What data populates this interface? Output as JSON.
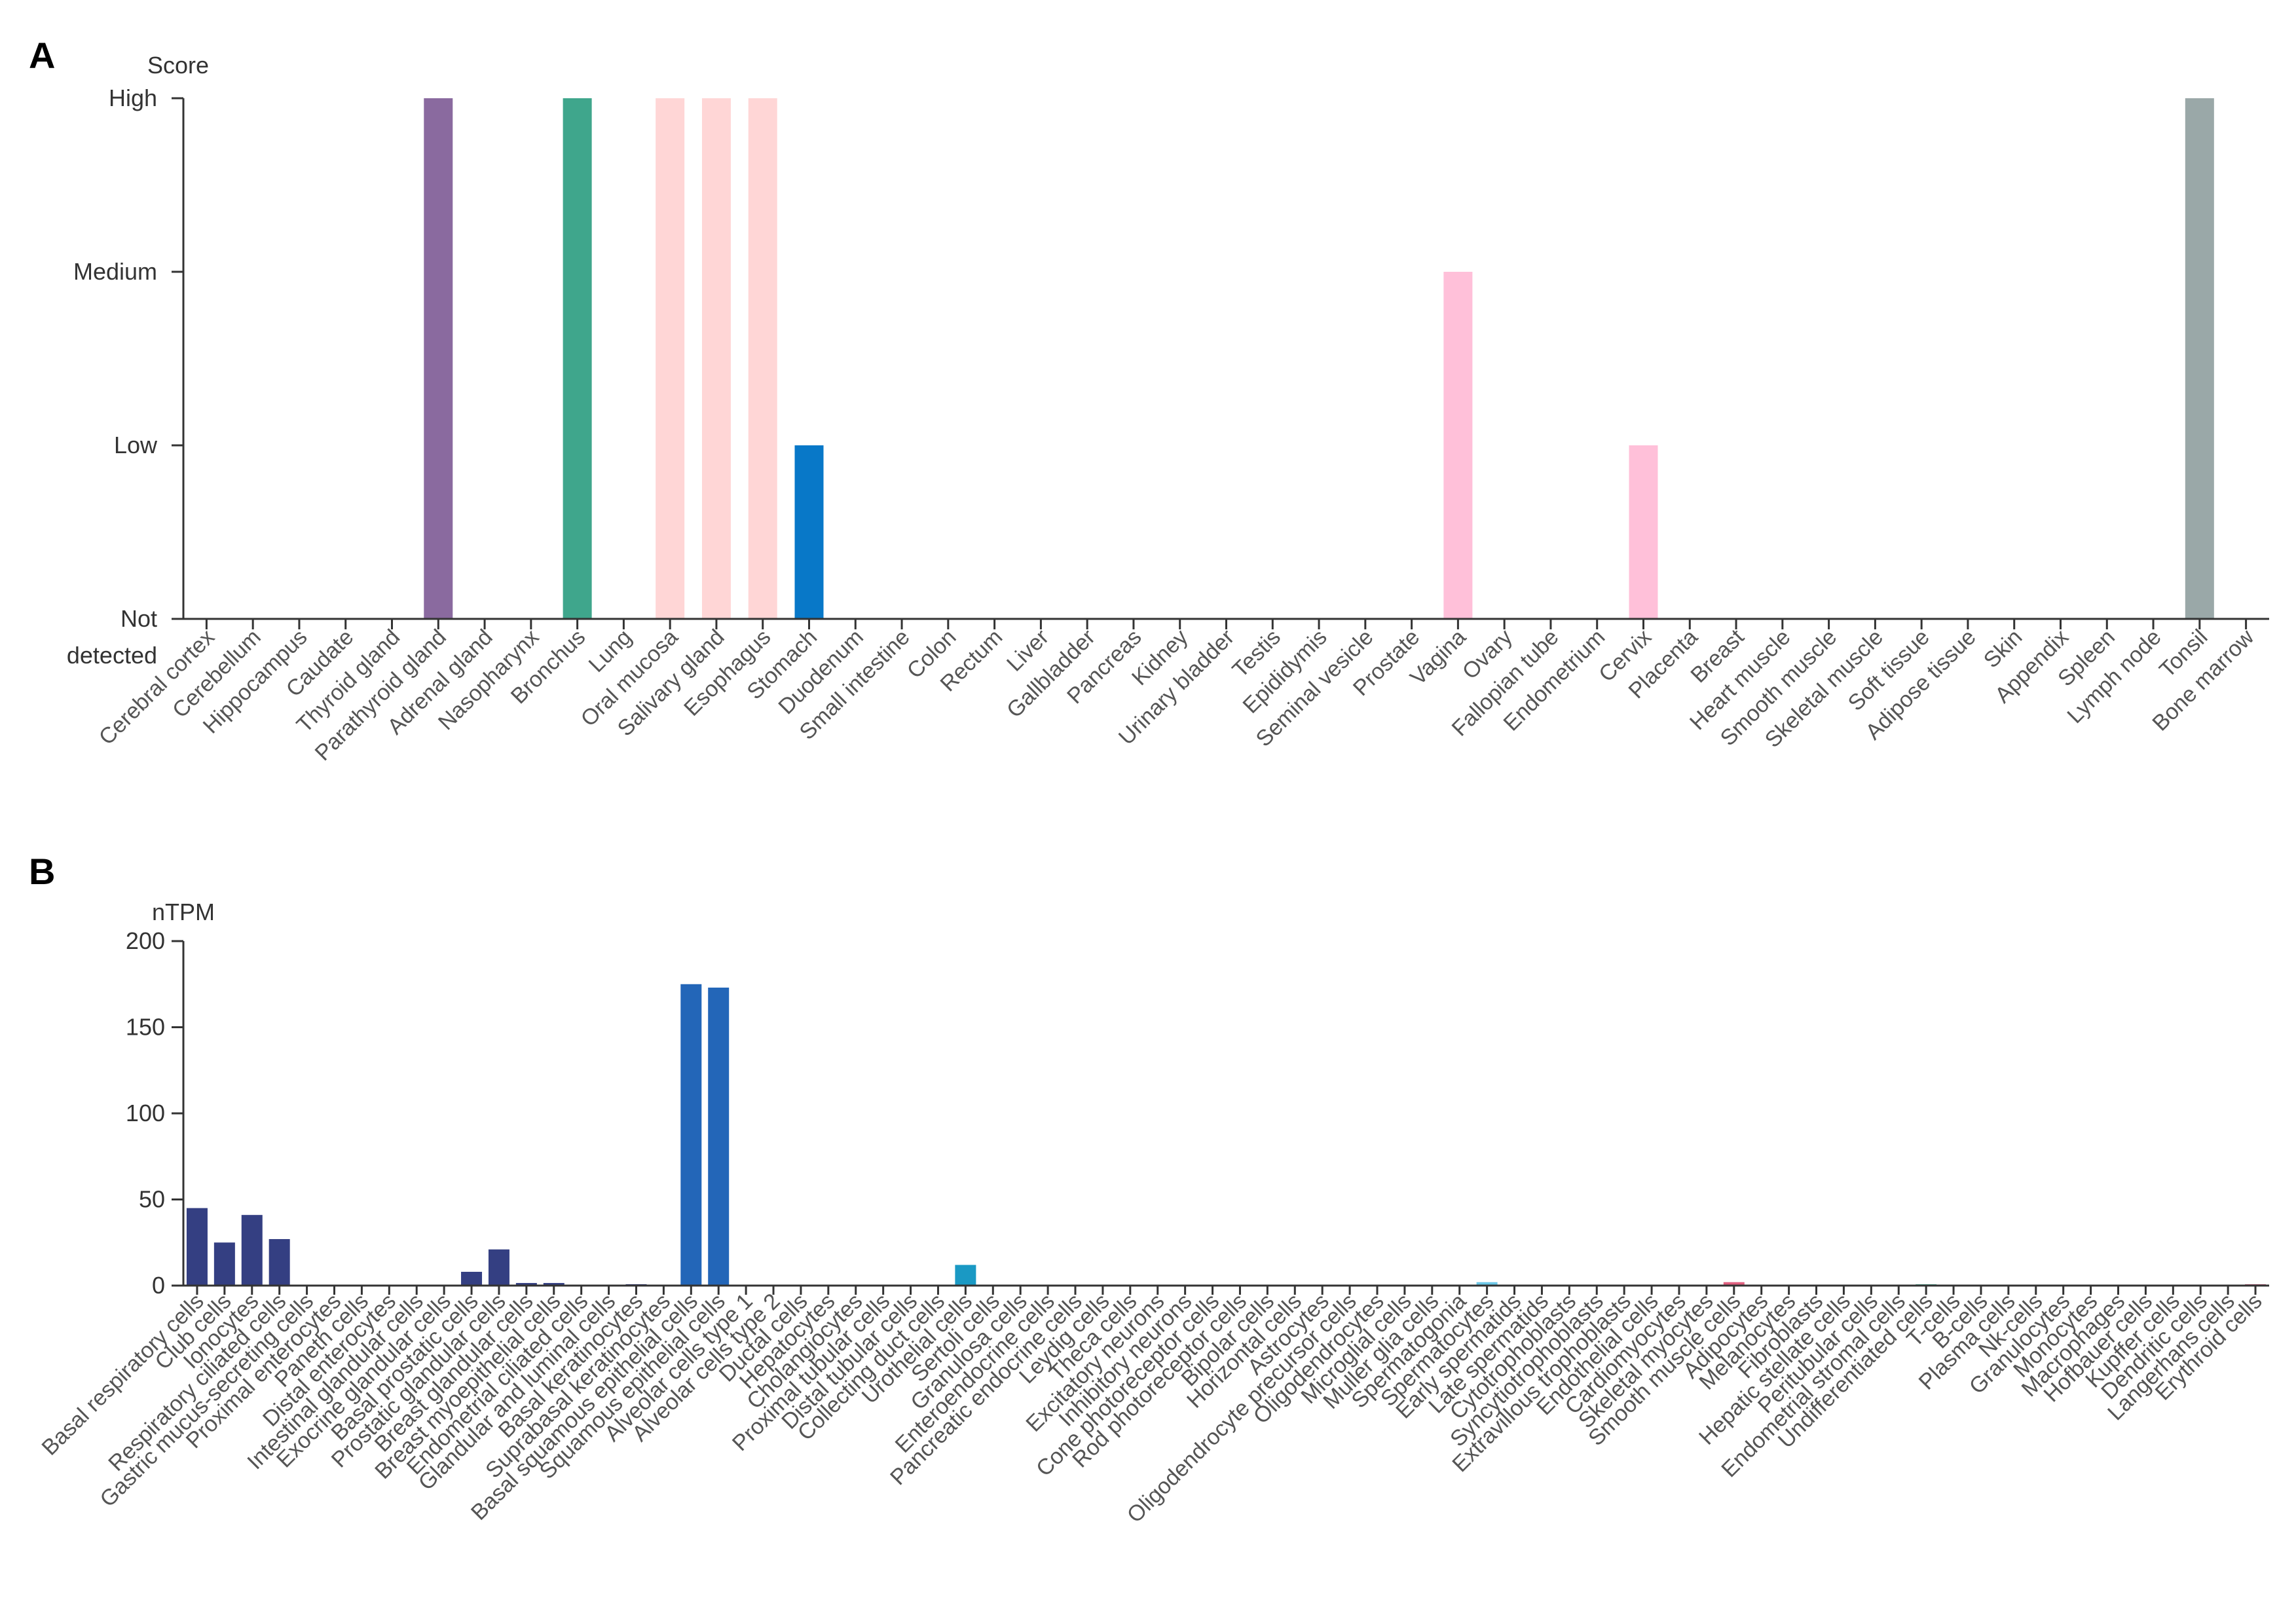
{
  "chart_data": [
    {
      "panel": "A",
      "type": "bar",
      "ylabel": "Score",
      "y_levels": [
        "Not detected",
        "Low",
        "Medium",
        "High"
      ],
      "y_level_labels": [
        "Not",
        "detected",
        "Low",
        "Medium",
        "High"
      ],
      "categories": [
        "Cerebral cortex",
        "Cerebellum",
        "Hippocampus",
        "Caudate",
        "Thyroid gland",
        "Parathyroid gland",
        "Adrenal gland",
        "Nasopharynx",
        "Bronchus",
        "Lung",
        "Oral mucosa",
        "Salivary gland",
        "Esophagus",
        "Stomach",
        "Duodenum",
        "Small intestine",
        "Colon",
        "Rectum",
        "Liver",
        "Gallbladder",
        "Pancreas",
        "Kidney",
        "Urinary bladder",
        "Testis",
        "Epididymis",
        "Seminal vesicle",
        "Prostate",
        "Vagina",
        "Ovary",
        "Fallopian tube",
        "Endometrium",
        "Cervix",
        "Placenta",
        "Breast",
        "Heart muscle",
        "Smooth muscle",
        "Skeletal muscle",
        "Soft tissue",
        "Adipose tissue",
        "Skin",
        "Appendix",
        "Spleen",
        "Lymph node",
        "Tonsil",
        "Bone marrow"
      ],
      "values": [
        0,
        0,
        0,
        0,
        0,
        3,
        0,
        0,
        3,
        0,
        3,
        3,
        3,
        1,
        0,
        0,
        0,
        0,
        0,
        0,
        0,
        0,
        0,
        0,
        0,
        0,
        0,
        2,
        0,
        0,
        0,
        1,
        0,
        0,
        0,
        0,
        0,
        0,
        0,
        0,
        0,
        0,
        0,
        3,
        0
      ],
      "colors": [
        "#888888",
        "#888888",
        "#888888",
        "#888888",
        "#888888",
        "#8a6a9f",
        "#888888",
        "#888888",
        "#3fa68c",
        "#888888",
        "#ffd6d6",
        "#ffd6d6",
        "#ffd6d6",
        "#0878c8",
        "#888888",
        "#888888",
        "#888888",
        "#888888",
        "#888888",
        "#888888",
        "#888888",
        "#888888",
        "#888888",
        "#888888",
        "#888888",
        "#888888",
        "#888888",
        "#ffc0d9",
        "#888888",
        "#888888",
        "#888888",
        "#ffc0d9",
        "#888888",
        "#888888",
        "#888888",
        "#888888",
        "#888888",
        "#888888",
        "#888888",
        "#888888",
        "#888888",
        "#888888",
        "#888888",
        "#9aa8a8",
        "#888888"
      ]
    },
    {
      "panel": "B",
      "type": "bar",
      "ylabel": "nTPM",
      "ylim": [
        0,
        200
      ],
      "yticks": [
        0,
        50,
        100,
        150,
        200
      ],
      "categories": [
        "Basal respiratory cells",
        "Club cells",
        "Ionocytes",
        "Respiratory ciliated cells",
        "Gastric mucus-secreting cells",
        "Proximal enterocytes",
        "Paneth cells",
        "Distal enterocytes",
        "Intestinal glandular cells",
        "Exocrine glandular cells",
        "Basal prostatic cells",
        "Prostatic glandular cells",
        "Breast glandular cells",
        "Breast myoepithelial cells",
        "Endometrial ciliated cells",
        "Glandular and luminal cells",
        "Basal keratinocytes",
        "Suprabasal keratinocytes",
        "Basal squamous epithelial cells",
        "Squamous epithelial cells",
        "Alveolar cells type 1",
        "Alveolar cells type 2",
        "Ductal cells",
        "Hepatocytes",
        "Cholangiocytes",
        "Proximal tubular cells",
        "Distal tubular cells",
        "Collecting duct cells",
        "Urothelial cells",
        "Sertoli cells",
        "Granulosa cells",
        "Enteroendocrine cells",
        "Pancreatic endocrine cells",
        "Leydig cells",
        "Theca cells",
        "Excitatory neurons",
        "Inhibitory neurons",
        "Cone photoreceptor cells",
        "Rod photoreceptor cells",
        "Bipolar cells",
        "Horizontal cells",
        "Astrocytes",
        "Oligodendrocyte precursor cells",
        "Oligodendrocytes",
        "Microglial cells",
        "Muller glia cells",
        "Spermatogonia",
        "Spermatocytes",
        "Early spermatids",
        "Late spermatids",
        "Cytotrophoblasts",
        "Syncytiotrophoblasts",
        "Extravillous trophoblasts",
        "Endothelial cells",
        "Cardiomyocytes",
        "Skeletal myocytes",
        "Smooth muscle cells",
        "Adipocytes",
        "Melanocytes",
        "Fibroblasts",
        "Hepatic stellate cells",
        "Peritubular cells",
        "Endometrial stromal cells",
        "Undifferentiated cells",
        "T-cells",
        "B-cells",
        "Plasma cells",
        "Nk-cells",
        "Granulocytes",
        "Monocytes",
        "Macrophages",
        "Hofbauer cells",
        "Kupffer cells",
        "Dendritic cells",
        "Langerhans cells",
        "Erythroid cells"
      ],
      "values": [
        45,
        25,
        41,
        27,
        0,
        0,
        0,
        0,
        0,
        0,
        8,
        21,
        1.5,
        1.5,
        0.5,
        0.5,
        0.8,
        0.3,
        175,
        173,
        0.3,
        0.3,
        0.3,
        0.3,
        0.3,
        0.3,
        0.3,
        0,
        12,
        0.3,
        0.3,
        0.5,
        0.3,
        0.3,
        0.3,
        0.3,
        0.3,
        0.3,
        0.3,
        0.3,
        0.3,
        0.3,
        0.3,
        0.3,
        0.3,
        0.3,
        0.3,
        2,
        0.3,
        0.3,
        0.3,
        0.3,
        0.3,
        0.5,
        0.5,
        0.3,
        2,
        0.3,
        0.3,
        0.5,
        0.3,
        0.3,
        0.3,
        0.8,
        0.3,
        0.3,
        0.3,
        0.3,
        0.3,
        0.3,
        0.3,
        0.3,
        0.3,
        0.3,
        0.3,
        0.8
      ],
      "colors": [
        "#343f82",
        "#343f82",
        "#343f82",
        "#343f82",
        "#343f82",
        "#343f82",
        "#343f82",
        "#343f82",
        "#343f82",
        "#343f82",
        "#343f82",
        "#343f82",
        "#343f82",
        "#343f82",
        "#343f82",
        "#343f82",
        "#343f82",
        "#343f82",
        "#2366b8",
        "#2366b8",
        "#2366b8",
        "#2366b8",
        "#2366b8",
        "#2366b8",
        "#2366b8",
        "#2366b8",
        "#2366b8",
        "#2366b8",
        "#1a99c4",
        "#1a99c4",
        "#1a99c4",
        "#8a8ab0",
        "#8a8ab0",
        "#8a8ab0",
        "#8a8ab0",
        "#8a8ab0",
        "#8a8ab0",
        "#8a8ab0",
        "#8a8ab0",
        "#8a8ab0",
        "#8a8ab0",
        "#8a8ab0",
        "#8a8ab0",
        "#8a8ab0",
        "#8a8ab0",
        "#8a8ab0",
        "#6ec8e8",
        "#6ec8e8",
        "#6ec8e8",
        "#6ec8e8",
        "#d07070",
        "#d07070",
        "#d07070",
        "#d07070",
        "#d07070",
        "#d07070",
        "#e06080",
        "#e06080",
        "#5ab8a0",
        "#5ab8a0",
        "#5ab8a0",
        "#5ab8a0",
        "#5ab8a0",
        "#5ab8a0",
        "#5ab8a0",
        "#5ab8a0",
        "#5ab8a0",
        "#5ab8a0",
        "#5ab8a0",
        "#5ab8a0",
        "#5ab8a0",
        "#5ab8a0",
        "#5ab8a0",
        "#5ab8a0",
        "#5ab8a0",
        "#c06080"
      ]
    }
  ]
}
